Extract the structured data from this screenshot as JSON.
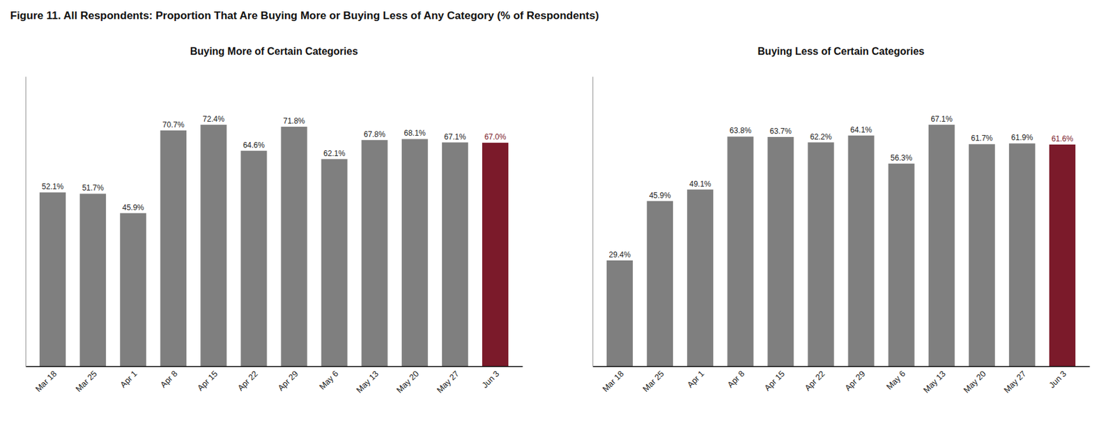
{
  "title": "Figure 11. All Respondents: Proportion That Are Buying More or Buying Less of Any Category (% of Respondents)",
  "chart_data": [
    {
      "type": "bar",
      "title": "Buying More of Certain Categories",
      "categories": [
        "Mar 18",
        "Mar 25",
        "Apr 1",
        "Apr 8",
        "Apr 15",
        "Apr 22",
        "Apr 29",
        "May 6",
        "May 13",
        "May 20",
        "May 27",
        "Jun 3"
      ],
      "values": [
        52.1,
        51.7,
        45.9,
        70.7,
        72.4,
        64.6,
        71.8,
        62.1,
        67.8,
        68.1,
        67.1,
        67.0
      ],
      "value_labels": [
        "52.1%",
        "51.7%",
        "45.9%",
        "70.7%",
        "72.4%",
        "64.6%",
        "71.8%",
        "62.1%",
        "67.8%",
        "68.1%",
        "67.1%",
        "67.0%"
      ],
      "colors": [
        "#7f7f7f",
        "#7f7f7f",
        "#7f7f7f",
        "#7f7f7f",
        "#7f7f7f",
        "#7f7f7f",
        "#7f7f7f",
        "#7f7f7f",
        "#7f7f7f",
        "#7f7f7f",
        "#7f7f7f",
        "#7B1A2A"
      ],
      "ylim": [
        0,
        86.88
      ],
      "grid": false,
      "data_labels": true,
      "tick_labels": "x"
    },
    {
      "type": "bar",
      "title": "Buying Less of Certain Categories",
      "categories": [
        "Mar 18",
        "Mar 25",
        "Apr 1",
        "Apr 8",
        "Apr 15",
        "Apr 22",
        "Apr 29",
        "May 6",
        "May 13",
        "May 20",
        "May 27",
        "Jun 3"
      ],
      "values": [
        29.4,
        45.9,
        49.1,
        63.8,
        63.7,
        62.2,
        64.1,
        56.3,
        67.1,
        61.7,
        61.9,
        61.6
      ],
      "value_labels": [
        "29.4%",
        "45.9%",
        "49.1%",
        "63.8%",
        "63.7%",
        "62.2%",
        "64.1%",
        "56.3%",
        "67.1%",
        "61.7%",
        "61.9%",
        "61.6%"
      ],
      "colors": [
        "#7f7f7f",
        "#7f7f7f",
        "#7f7f7f",
        "#7f7f7f",
        "#7f7f7f",
        "#7f7f7f",
        "#7f7f7f",
        "#7f7f7f",
        "#7f7f7f",
        "#7f7f7f",
        "#7f7f7f",
        "#7B1A2A"
      ],
      "ylim": [
        0,
        80.52
      ],
      "grid": false,
      "data_labels": true,
      "tick_labels": "x"
    }
  ]
}
